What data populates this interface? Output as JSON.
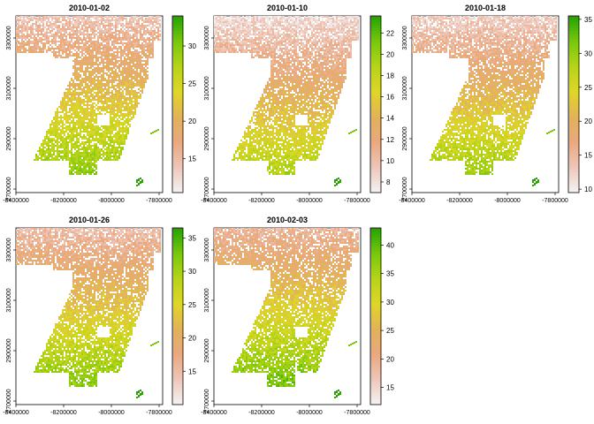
{
  "panels": [
    {
      "title": "2010-01-02",
      "legend": {
        "ticks": [
          15,
          20,
          25,
          30
        ],
        "min": 10.5,
        "max": 34
      }
    },
    {
      "title": "2010-01-10",
      "legend": {
        "ticks": [
          8,
          10,
          12,
          14,
          16,
          18,
          20,
          22
        ],
        "min": 7,
        "max": 23.6
      }
    },
    {
      "title": "2010-01-18",
      "legend": {
        "ticks": [
          10,
          15,
          20,
          25,
          30,
          35
        ],
        "min": 9.5,
        "max": 35.5
      }
    },
    {
      "title": "2010-01-26",
      "legend": {
        "ticks": [
          15,
          20,
          25,
          30,
          35
        ],
        "min": 10,
        "max": 36.5
      }
    },
    {
      "title": "2010-02-03",
      "legend": {
        "ticks": [
          15,
          20,
          25,
          30,
          35,
          40
        ],
        "min": 12,
        "max": 43
      }
    }
  ],
  "axis": {
    "x_ticks": [
      "-8400000",
      "-8200000",
      "-8000000",
      "-7800000"
    ],
    "y_ticks": [
      "2700000",
      "2900000",
      "3100000",
      "3300000"
    ]
  },
  "colors": {
    "palette": [
      "#f2f2f2",
      "#eec5b8",
      "#e9a87e",
      "#e2b25a",
      "#dfd62a",
      "#b8d418",
      "#7cc80e",
      "#2aa500"
    ],
    "frame": "#000000"
  }
}
